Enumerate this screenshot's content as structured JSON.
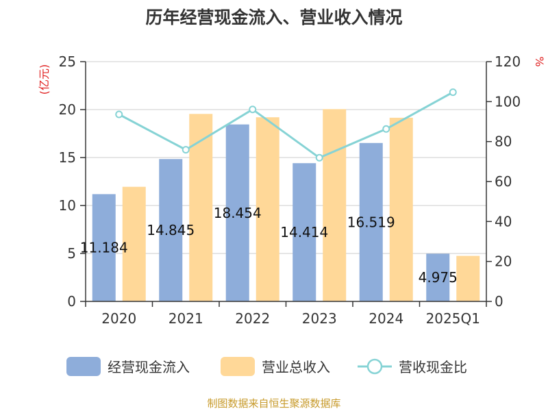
{
  "chart_data": {
    "type": "bar",
    "title": "历年经营现金流入、营业收入情况",
    "categories": [
      "2020",
      "2021",
      "2022",
      "2023",
      "2024",
      "2025Q1"
    ],
    "y_left": {
      "unit": "(亿元)",
      "range": [
        0,
        25
      ],
      "ticks": [
        0,
        5,
        10,
        15,
        20,
        25
      ]
    },
    "y_right": {
      "unit": "%",
      "range": [
        0,
        120
      ],
      "ticks": [
        0,
        20,
        40,
        60,
        80,
        100,
        120
      ]
    },
    "series": [
      {
        "name": "经营现金流入",
        "type": "bar",
        "axis": "left",
        "color": "#8eadda",
        "values": [
          11.184,
          14.845,
          18.454,
          14.414,
          16.519,
          4.975
        ],
        "labels": [
          "11.184",
          "14.845",
          "18.454",
          "14.414",
          "16.519",
          "4.975"
        ]
      },
      {
        "name": "营业总收入",
        "type": "bar",
        "axis": "left",
        "color": "#ffd898",
        "values": [
          11.95,
          19.55,
          19.2,
          20.05,
          19.15,
          4.75
        ]
      },
      {
        "name": "营收现金比",
        "type": "line",
        "axis": "right",
        "color": "#86d3d5",
        "values": [
          93.6,
          75.9,
          96.1,
          71.9,
          86.3,
          104.7
        ]
      }
    ],
    "legend": {
      "position": "bottom"
    },
    "grid": true
  },
  "source": "制图数据来自恒生聚源数据库"
}
